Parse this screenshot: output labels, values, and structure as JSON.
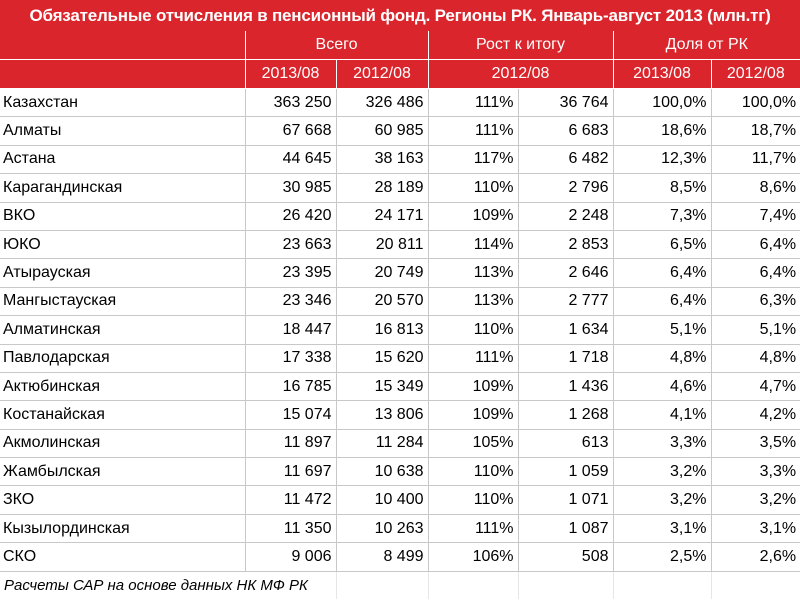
{
  "chart_data": {
    "type": "table",
    "title": "Обязательные отчисления в пенсионный фонд. Регионы РК. Январь-август 2013 (млн.тг)",
    "group_headers": [
      "Всего",
      "Рост к итогу",
      "Доля от РК"
    ],
    "sub_headers": [
      "2013/08",
      "2012/08",
      "2012/08",
      "2013/08",
      "2012/08"
    ],
    "rows": [
      {
        "name": "Казахстан",
        "total_2013": "363 250",
        "total_2012": "326 486",
        "growth_pct": "111%",
        "growth_abs": "36 764",
        "share_2013": "100,0%",
        "share_2012": "100,0%"
      },
      {
        "name": "Алматы",
        "total_2013": "67 668",
        "total_2012": "60 985",
        "growth_pct": "111%",
        "growth_abs": "6 683",
        "share_2013": "18,6%",
        "share_2012": "18,7%"
      },
      {
        "name": "Астана",
        "total_2013": "44 645",
        "total_2012": "38 163",
        "growth_pct": "117%",
        "growth_abs": "6 482",
        "share_2013": "12,3%",
        "share_2012": "11,7%"
      },
      {
        "name": "Карагандинская",
        "total_2013": "30 985",
        "total_2012": "28 189",
        "growth_pct": "110%",
        "growth_abs": "2 796",
        "share_2013": "8,5%",
        "share_2012": "8,6%"
      },
      {
        "name": "ВКО",
        "total_2013": "26 420",
        "total_2012": "24 171",
        "growth_pct": "109%",
        "growth_abs": "2 248",
        "share_2013": "7,3%",
        "share_2012": "7,4%"
      },
      {
        "name": "ЮКО",
        "total_2013": "23 663",
        "total_2012": "20 811",
        "growth_pct": "114%",
        "growth_abs": "2 853",
        "share_2013": "6,5%",
        "share_2012": "6,4%"
      },
      {
        "name": "Атырауская",
        "total_2013": "23 395",
        "total_2012": "20 749",
        "growth_pct": "113%",
        "growth_abs": "2 646",
        "share_2013": "6,4%",
        "share_2012": "6,4%"
      },
      {
        "name": "Мангыстауская",
        "total_2013": "23 346",
        "total_2012": "20 570",
        "growth_pct": "113%",
        "growth_abs": "2 777",
        "share_2013": "6,4%",
        "share_2012": "6,3%"
      },
      {
        "name": "Алматинская",
        "total_2013": "18 447",
        "total_2012": "16 813",
        "growth_pct": "110%",
        "growth_abs": "1 634",
        "share_2013": "5,1%",
        "share_2012": "5,1%"
      },
      {
        "name": "Павлодарская",
        "total_2013": "17 338",
        "total_2012": "15 620",
        "growth_pct": "111%",
        "growth_abs": "1 718",
        "share_2013": "4,8%",
        "share_2012": "4,8%"
      },
      {
        "name": "Актюбинская",
        "total_2013": "16 785",
        "total_2012": "15 349",
        "growth_pct": "109%",
        "growth_abs": "1 436",
        "share_2013": "4,6%",
        "share_2012": "4,7%"
      },
      {
        "name": "Костанайская",
        "total_2013": "15 074",
        "total_2012": "13 806",
        "growth_pct": "109%",
        "growth_abs": "1 268",
        "share_2013": "4,1%",
        "share_2012": "4,2%"
      },
      {
        "name": "Акмолинская",
        "total_2013": "11 897",
        "total_2012": "11 284",
        "growth_pct": "105%",
        "growth_abs": "613",
        "share_2013": "3,3%",
        "share_2012": "3,5%"
      },
      {
        "name": "Жамбылская",
        "total_2013": "11 697",
        "total_2012": "10 638",
        "growth_pct": "110%",
        "growth_abs": "1 059",
        "share_2013": "3,2%",
        "share_2012": "3,3%"
      },
      {
        "name": "ЗКО",
        "total_2013": "11 472",
        "total_2012": "10 400",
        "growth_pct": "110%",
        "growth_abs": "1 071",
        "share_2013": "3,2%",
        "share_2012": "3,2%"
      },
      {
        "name": "Кызылординская",
        "total_2013": "11 350",
        "total_2012": "10 263",
        "growth_pct": "111%",
        "growth_abs": "1 087",
        "share_2013": "3,1%",
        "share_2012": "3,1%"
      },
      {
        "name": "СКО",
        "total_2013": "9 006",
        "total_2012": "8 499",
        "growth_pct": "106%",
        "growth_abs": "508",
        "share_2013": "2,5%",
        "share_2012": "2,6%"
      }
    ],
    "footnote": "Расчеты САР на основе данных НК МФ РК"
  },
  "colors": {
    "header_bg": "#d9252b",
    "header_text": "#ffffff",
    "grid": "#c8c8c8"
  }
}
